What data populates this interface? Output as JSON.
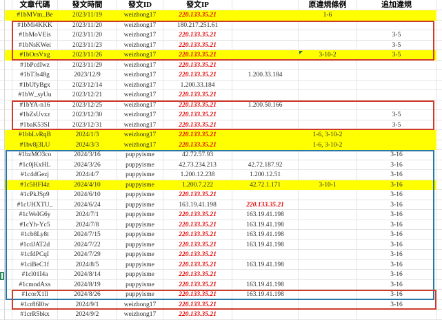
{
  "table": {
    "headers": {
      "code": "文章代碼",
      "time": "發文時間",
      "id": "發文ID",
      "ip": "發文IP",
      "ip2": "",
      "orig": "原違規條例",
      "extra": "追加違規"
    },
    "rows": [
      {
        "code": "#1bMVm_Be",
        "time": "2023/11/19",
        "id": "weizhong17",
        "ip": "220.133.35.21",
        "ip_red": true,
        "ip2": "",
        "ip2_red": false,
        "orig": "1-6",
        "extra": "",
        "highlight": true,
        "marker": false
      },
      {
        "code": "#1bMi4KKK",
        "time": "2023/11/20",
        "id": "weizhong17",
        "ip": "180.217.251.61",
        "ip_red": false,
        "ip2": "",
        "ip2_red": false,
        "orig": "",
        "extra": "",
        "highlight": false,
        "marker": false
      },
      {
        "code": "#1bMoVEis",
        "time": "2023/11/20",
        "id": "weizhong17",
        "ip": "220.133.35.21",
        "ip_red": true,
        "ip2": "",
        "ip2_red": false,
        "orig": "",
        "extra": "3-5",
        "highlight": false,
        "marker": false
      },
      {
        "code": "#1bNsKWei",
        "time": "2023/11/23",
        "id": "weizhong17",
        "ip": "220.133.35.21",
        "ip_red": true,
        "ip2": "",
        "ip2_red": false,
        "orig": "",
        "extra": "3-5",
        "highlight": false,
        "marker": false
      },
      {
        "code": "#1bOrsVxg",
        "time": "2023/11/26",
        "id": "weizhong17",
        "ip": "220.133.35.21",
        "ip_red": true,
        "ip2": "",
        "ip2_red": false,
        "orig": "3-10-2",
        "extra": "3-5",
        "highlight": true,
        "marker": true
      },
      {
        "code": "#1bPcdIwz",
        "time": "2023/11/29",
        "id": "weizhong17",
        "ip": "220.133.35.21",
        "ip_red": true,
        "ip2": "",
        "ip2_red": false,
        "orig": "",
        "extra": "",
        "highlight": false,
        "marker": false
      },
      {
        "code": "#1bT3s48g",
        "time": "2023/12/9",
        "id": "weizhong17",
        "ip": "220.133.35.21",
        "ip_red": true,
        "ip2": "1.200.33.184",
        "ip2_red": false,
        "orig": "",
        "extra": "",
        "highlight": false,
        "marker": false
      },
      {
        "code": "#1bUfyBgx",
        "time": "2023/12/14",
        "id": "weizhong17",
        "ip": "1.200.33.184",
        "ip_red": false,
        "ip2": "",
        "ip2_red": false,
        "orig": "",
        "extra": "",
        "highlight": false,
        "marker": false
      },
      {
        "code": "#1bW_syUu",
        "time": "2023/12/21",
        "id": "weizhong17",
        "ip": "220.133.35.21",
        "ip_red": true,
        "ip2": "",
        "ip2_red": false,
        "orig": "",
        "extra": "",
        "highlight": false,
        "marker": false
      },
      {
        "code": "#1bYA-n16",
        "time": "2023/12/25",
        "id": "weizhong17",
        "ip": "220.133.35.21",
        "ip_red": true,
        "ip2": "1.200.50.166",
        "ip2_red": false,
        "orig": "",
        "extra": "",
        "highlight": false,
        "marker": false
      },
      {
        "code": "#1bZsUvxz",
        "time": "2023/12/30",
        "id": "weizhong17",
        "ip": "220.133.35.21",
        "ip_red": true,
        "ip2": "",
        "ip2_red": false,
        "orig": "",
        "extra": "3-5",
        "highlight": false,
        "marker": false
      },
      {
        "code": "#1baK53SI",
        "time": "2023/12/31",
        "id": "weizhong17",
        "ip": "220.133.35.21",
        "ip_red": true,
        "ip2": "",
        "ip2_red": false,
        "orig": "",
        "extra": "3-5",
        "highlight": false,
        "marker": false
      },
      {
        "code": "#1bbLvRqB",
        "time": "2024/1/3",
        "id": "weizhong17",
        "ip": "220.133.35.21",
        "ip_red": true,
        "ip2": "",
        "ip2_red": false,
        "orig": "1-6, 3-10-2",
        "extra": "",
        "highlight": true,
        "marker": false
      },
      {
        "code": "#1bv8j3LU",
        "time": "2024/3/3",
        "id": "weizhong17",
        "ip": "220.133.35.21",
        "ip_red": true,
        "ip2": "",
        "ip2_red": false,
        "orig": "1-6, 3-10-2",
        "extra": "",
        "highlight": true,
        "marker": false
      },
      {
        "code": "#1bzMO3co",
        "time": "2024/3/16",
        "id": "puppyisme",
        "ip": "42.72.57.93",
        "ip_red": false,
        "ip2": "",
        "ip2_red": false,
        "orig": "",
        "extra": "3-16",
        "highlight": false,
        "marker": false
      },
      {
        "code": "#1c0jKxHL",
        "time": "2024/3/26",
        "id": "puppyisme",
        "ip": "42.73.234.213",
        "ip_red": false,
        "ip2": "42.72.187.92",
        "ip2_red": false,
        "orig": "",
        "extra": "3-16",
        "highlight": false,
        "marker": false
      },
      {
        "code": "#1c4dGezj",
        "time": "2024/4/7",
        "id": "puppyisme",
        "ip": "1.200.12.238",
        "ip_red": false,
        "ip2": "1.200.12.51",
        "ip2_red": false,
        "orig": "",
        "extra": "3-16",
        "highlight": false,
        "marker": false
      },
      {
        "code": "#1c5HFI4z",
        "time": "2024/4/10",
        "id": "puppyisme",
        "ip": "1.200.7.222",
        "ip_red": false,
        "ip2": "42.72.1.171",
        "ip2_red": false,
        "orig": "3-10-1",
        "extra": "3-16",
        "highlight": true,
        "marker": false
      },
      {
        "code": "#1cPkJSp9",
        "time": "2024/6/10",
        "id": "puppyisme",
        "ip": "220.133.35.21",
        "ip_red": true,
        "ip2": "",
        "ip2_red": false,
        "orig": "",
        "extra": "3-16",
        "highlight": false,
        "marker": false
      },
      {
        "code": "#1cUHXTU_",
        "time": "2024/6/24",
        "id": "puppyisme",
        "ip": "163.19.41.198",
        "ip_red": false,
        "ip2": "220.133.35.21",
        "ip2_red": true,
        "orig": "",
        "extra": "3-16",
        "highlight": false,
        "marker": false
      },
      {
        "code": "#1cWeIG6y",
        "time": "2024/7/1",
        "id": "puppyisme",
        "ip": "220.133.35.21",
        "ip_red": true,
        "ip2": "163.19.41.198",
        "ip2_red": false,
        "orig": "",
        "extra": "3-16",
        "highlight": false,
        "marker": false
      },
      {
        "code": "#1cYh-Yc5",
        "time": "2024/7/8",
        "id": "puppyisme",
        "ip": "220.133.35.21",
        "ip_red": true,
        "ip2": "163.19.41.198",
        "ip2_red": false,
        "orig": "",
        "extra": "3-16",
        "highlight": false,
        "marker": false
      },
      {
        "code": "#1cb8Ly8t",
        "time": "2024/7/15",
        "id": "puppyisme",
        "ip": "220.133.35.21",
        "ip_red": true,
        "ip2": "163.19.41.198",
        "ip2_red": false,
        "orig": "",
        "extra": "3-16",
        "highlight": false,
        "marker": false
      },
      {
        "code": "#1cdJAT2d",
        "time": "2024/7/22",
        "id": "puppyisme",
        "ip": "220.133.35.21",
        "ip_red": true,
        "ip2": "163.19.41.198",
        "ip2_red": false,
        "orig": "",
        "extra": "3-16",
        "highlight": false,
        "marker": false
      },
      {
        "code": "#1cfdPCqI",
        "time": "2024/7/29",
        "id": "puppyisme",
        "ip": "220.133.35.21",
        "ip_red": true,
        "ip2": "",
        "ip2_red": false,
        "orig": "",
        "extra": "3-16",
        "highlight": false,
        "marker": false
      },
      {
        "code": "#1ciBeC1f",
        "time": "2024/8/5",
        "id": "puppyisme",
        "ip": "220.133.35.21",
        "ip_red": true,
        "ip2": "163.19.41.198",
        "ip2_red": false,
        "orig": "",
        "extra": "3-16",
        "highlight": false,
        "marker": false
      },
      {
        "code": "#1cl01I4a",
        "time": "2024/8/14",
        "id": "puppyisme",
        "ip": "220.133.35.21",
        "ip_red": true,
        "ip2": "",
        "ip2_red": false,
        "orig": "",
        "extra": "3-16",
        "highlight": false,
        "marker": false
      },
      {
        "code": "#1cmndAxs",
        "time": "2024/8/19",
        "id": "puppyisme",
        "ip": "220.133.35.21",
        "ip_red": true,
        "ip2": "163.19.41.198",
        "ip2_red": false,
        "orig": "",
        "extra": "3-16",
        "highlight": false,
        "marker": false
      },
      {
        "code": "#1corX1ll",
        "time": "2024/8/26",
        "id": "puppyisme",
        "ip": "220.133.35.21",
        "ip_red": true,
        "ip2": "163.19.41.198",
        "ip2_red": false,
        "orig": "",
        "extra": "3-16",
        "highlight": false,
        "marker": false
      },
      {
        "code": "#1cr86I0w",
        "time": "2024/9/1",
        "id": "weizhong17",
        "ip": "220.133.35.21",
        "ip_red": true,
        "ip2": "",
        "ip2_red": false,
        "orig": "",
        "extra": "3-16",
        "highlight": false,
        "marker": false
      },
      {
        "code": "#1crR5bkx",
        "time": "2024/9/2",
        "id": "weizhong17",
        "ip": "220.133.35.21",
        "ip_red": true,
        "ip2": "",
        "ip2_red": false,
        "orig": "",
        "extra": "",
        "highlight": false,
        "marker": false
      }
    ]
  },
  "annotations": {
    "red_boxes": [
      {
        "row_start": 2,
        "row_end": 5
      },
      {
        "row_start": 10,
        "row_end": 12
      },
      {
        "row_start": 29,
        "row_end": 30
      }
    ],
    "blue_box": {
      "row_start": 15,
      "row_end": 29
    }
  },
  "colors": {
    "highlight": "#ffff00",
    "red_text": "#e00404",
    "red_box_border": "#cf3a2b",
    "blue_box_border": "#2b76a8",
    "gridline": "#e4e4e4",
    "comment_marker_green": "#217346"
  }
}
